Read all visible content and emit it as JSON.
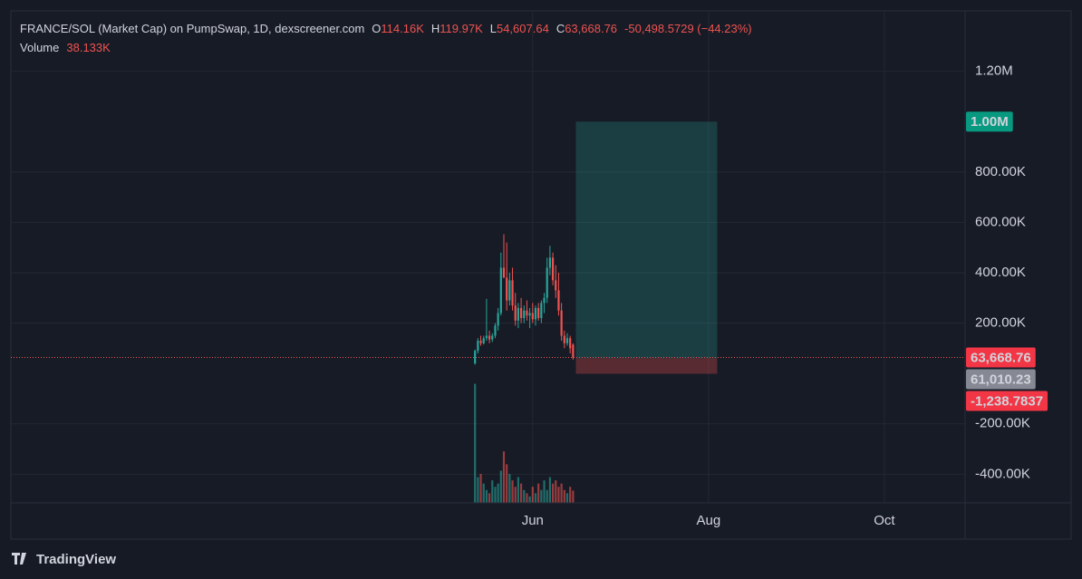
{
  "chart_data": {
    "type": "candlestick",
    "title": "FRANCE/SOL (Market Cap) on PumpSwap, 1D, dexscreener.com",
    "legend": {
      "o": "O",
      "open": "114.16K",
      "h": "H",
      "high": "119.97K",
      "l": "L",
      "low": "54,607.64",
      "c": "C",
      "change": "-50,498.5729 (−44.23%)",
      "volume_label": "Volume",
      "volume": "38.133K"
    },
    "up_color": "#26a69a",
    "down_color": "#ef5350",
    "x": [
      -20,
      -19,
      -18,
      -17,
      -16,
      -15,
      -14,
      -13,
      -12,
      -11,
      -10,
      -9,
      -8,
      -7,
      -6,
      -5,
      -4,
      -3,
      -2,
      -1,
      0,
      1,
      2,
      3,
      4,
      5,
      6,
      7,
      8,
      9,
      10,
      11,
      12,
      13,
      14
    ],
    "open": [
      40000,
      90000,
      130000,
      120000,
      140000,
      150000,
      135000,
      150000,
      190000,
      240000,
      420000,
      380000,
      290000,
      370000,
      270000,
      210000,
      260000,
      220000,
      250000,
      230000,
      240000,
      215000,
      260000,
      220000,
      280000,
      300000,
      420000,
      460000,
      370000,
      330000,
      250000,
      150000,
      120000,
      140000,
      114160
    ],
    "high": [
      95000,
      140000,
      150000,
      150000,
      296000,
      170000,
      160000,
      200000,
      260000,
      480000,
      553000,
      520000,
      400000,
      420000,
      320000,
      280000,
      300000,
      270000,
      290000,
      260000,
      280000,
      270000,
      280000,
      290000,
      320000,
      460000,
      507000,
      480000,
      430000,
      400000,
      280000,
      170000,
      160000,
      150000,
      119970
    ],
    "low": [
      35000,
      80000,
      110000,
      115000,
      130000,
      120000,
      125000,
      140000,
      170000,
      230000,
      380000,
      250000,
      270000,
      250000,
      190000,
      180000,
      200000,
      200000,
      210000,
      180000,
      200000,
      190000,
      210000,
      200000,
      240000,
      280000,
      390000,
      350000,
      300000,
      230000,
      130000,
      100000,
      110000,
      80000,
      54607.64
    ],
    "close": [
      90000,
      130000,
      120000,
      140000,
      150000,
      135000,
      150000,
      190000,
      240000,
      420000,
      380000,
      290000,
      370000,
      270000,
      210000,
      260000,
      220000,
      250000,
      230000,
      240000,
      215000,
      260000,
      220000,
      280000,
      300000,
      420000,
      460000,
      370000,
      330000,
      250000,
      150000,
      120000,
      140000,
      100000,
      63668.76
    ],
    "volume": [
      370000,
      80000,
      90000,
      60000,
      40000,
      30000,
      70000,
      50000,
      60000,
      100000,
      160000,
      120000,
      90000,
      70000,
      50000,
      80000,
      60000,
      40000,
      30000,
      20000,
      50000,
      30000,
      60000,
      40000,
      70000,
      40000,
      80000,
      60000,
      70000,
      50000,
      60000,
      40000,
      30000,
      50000,
      38133
    ],
    "volume_ylim": [
      0,
      380000
    ],
    "ylim": [
      -514000,
      1440000
    ],
    "yticks": [
      {
        "value": 1200000,
        "label": "1.20M"
      },
      {
        "value": 800000,
        "label": "800.00K"
      },
      {
        "value": 600000,
        "label": "600.00K"
      },
      {
        "value": 400000,
        "label": "400.00K"
      },
      {
        "value": 200000,
        "label": "200.00K"
      },
      {
        "value": -200000,
        "label": "-200.00K"
      },
      {
        "value": -400000,
        "label": "-400.00K"
      }
    ],
    "xlim": [
      -181,
      150
    ],
    "xticks": [
      {
        "value": 0,
        "label": "Jun"
      },
      {
        "value": 61,
        "label": "Aug"
      },
      {
        "value": 122,
        "label": "Oct"
      }
    ],
    "grid": true,
    "last_price": {
      "value": 63668.76,
      "label": "63,668.76"
    },
    "position": {
      "start": 15,
      "end": 64,
      "target": {
        "value": 1000000,
        "label": "1.00M"
      },
      "entry": {
        "value": 61010.23,
        "label": "61,010.23"
      },
      "stop": {
        "value": -1238.7837,
        "label": "-1,238.7837"
      }
    },
    "footer": "TradingView"
  }
}
